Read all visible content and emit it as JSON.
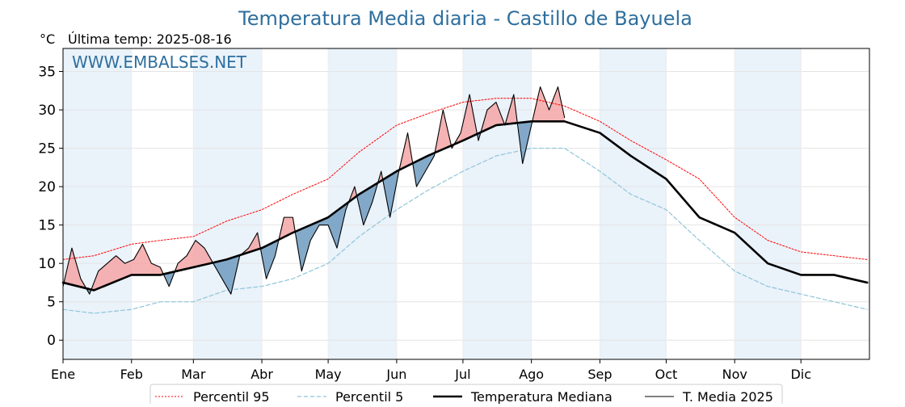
{
  "chart_data": {
    "type": "line",
    "title": "Temperatura Media diaria - Castillo de Bayuela",
    "unit_label": "°C",
    "subtitle": "Última temp: 2025-08-16",
    "watermark": "WWW.EMBALSES.NET",
    "xlabel": "",
    "ylabel": "",
    "ylim": [
      -2.5,
      38
    ],
    "yticks": [
      0,
      5,
      10,
      15,
      20,
      25,
      30,
      35
    ],
    "month_labels": [
      "Ene",
      "Feb",
      "Mar",
      "Abr",
      "May",
      "Jun",
      "Jul",
      "Ago",
      "Sep",
      "Oct",
      "Nov",
      "Dic"
    ],
    "month_start_days": [
      1,
      32,
      60,
      91,
      121,
      152,
      182,
      213,
      244,
      274,
      305,
      335
    ],
    "shaded_months": [
      "Ene",
      "Mar",
      "May",
      "Jul",
      "Sep",
      "Nov"
    ],
    "day_range": [
      1,
      366
    ],
    "grid": true,
    "legend_position": "bottom",
    "colors": {
      "title": "#2e6f9e",
      "watermark": "#2e6f9e",
      "p95": "#ff0000",
      "p5": "#8ec5d9",
      "median": "#000000",
      "current": "#000000",
      "fill_above": "#f4a6a6",
      "fill_below": "#6f9bbf",
      "month_shade": "#eaf2fa"
    },
    "series": [
      {
        "name": "Percentil 95",
        "style": "dotted-red",
        "days": [
          1,
          15,
          32,
          45,
          60,
          75,
          91,
          105,
          121,
          135,
          152,
          166,
          182,
          197,
          213,
          228,
          244,
          258,
          274,
          289,
          305,
          320,
          335,
          350,
          365
        ],
        "values": [
          10.5,
          11,
          12.5,
          13,
          13.5,
          15.5,
          17,
          19,
          21,
          24.5,
          28,
          29.5,
          31,
          31.5,
          31.5,
          30.5,
          28.5,
          26,
          23.5,
          21,
          16,
          13,
          11.5,
          11,
          10.5
        ]
      },
      {
        "name": "Percentil 5",
        "style": "dashed-lightblue",
        "days": [
          1,
          15,
          32,
          45,
          60,
          75,
          91,
          105,
          121,
          135,
          152,
          166,
          182,
          197,
          213,
          228,
          244,
          258,
          274,
          289,
          305,
          320,
          335,
          350,
          365
        ],
        "values": [
          4,
          3.5,
          4,
          5,
          5,
          6.5,
          7,
          8,
          10,
          13.5,
          17,
          19.5,
          22,
          24,
          25,
          25,
          22,
          19,
          17,
          13,
          9,
          7,
          6,
          5,
          4
        ]
      },
      {
        "name": "Temperatura Mediana",
        "style": "thick-black",
        "days": [
          1,
          15,
          32,
          45,
          60,
          75,
          91,
          105,
          121,
          135,
          152,
          166,
          182,
          197,
          213,
          228,
          244,
          258,
          274,
          289,
          305,
          320,
          335,
          350,
          365
        ],
        "values": [
          7.5,
          6.5,
          8.5,
          8.5,
          9.5,
          10.5,
          12,
          14,
          16,
          19,
          22,
          24,
          26,
          28,
          28.5,
          28.5,
          27,
          24,
          21,
          16,
          14,
          10,
          8.5,
          8.5,
          7.5
        ]
      },
      {
        "name": "T. Media 2025",
        "style": "thin-black",
        "days": [
          1,
          5,
          9,
          13,
          17,
          21,
          25,
          29,
          33,
          37,
          41,
          45,
          49,
          53,
          57,
          61,
          65,
          69,
          73,
          77,
          81,
          85,
          89,
          93,
          97,
          101,
          105,
          109,
          113,
          117,
          121,
          125,
          129,
          133,
          137,
          141,
          145,
          149,
          153,
          157,
          161,
          165,
          169,
          173,
          177,
          181,
          185,
          189,
          193,
          197,
          201,
          205,
          209,
          213,
          217,
          221,
          225,
          228
        ],
        "values": [
          7,
          12,
          8,
          6,
          9,
          10,
          11,
          10,
          10.5,
          12.5,
          10,
          9.5,
          7,
          10,
          11,
          13,
          12,
          10,
          8,
          6,
          11,
          12,
          14,
          8,
          11,
          16,
          16,
          9,
          13,
          15,
          15,
          12,
          17,
          20,
          15,
          18,
          22,
          16,
          22,
          27,
          20,
          22,
          24,
          30,
          25,
          27,
          32,
          26,
          30,
          31,
          28,
          32,
          23,
          28,
          33,
          30,
          33,
          29
        ]
      }
    ]
  },
  "legend": {
    "items": [
      {
        "label": "Percentil 95"
      },
      {
        "label": "Percentil 5"
      },
      {
        "label": "Temperatura Mediana"
      },
      {
        "label": "T. Media 2025"
      }
    ]
  }
}
